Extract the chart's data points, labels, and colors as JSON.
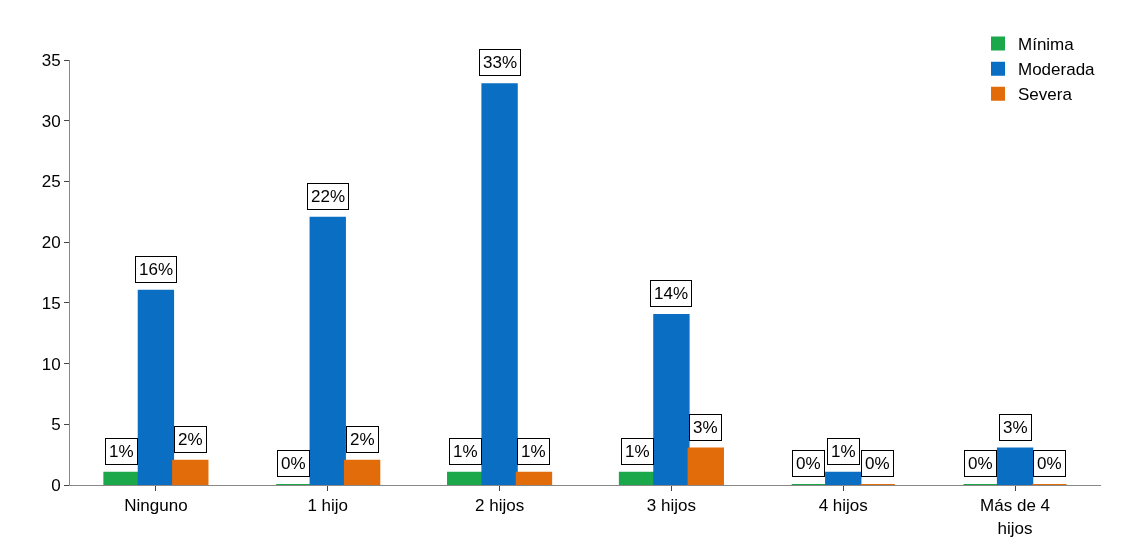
{
  "chart_data": {
    "type": "bar",
    "categories": [
      "Ninguno",
      "1 hijo",
      "2 hijos",
      "3 hijos",
      "4 hijos",
      "Más de 4 hijos"
    ],
    "series": [
      {
        "name": "Mínima",
        "color": "#1aa84a",
        "values": [
          1,
          0,
          1,
          1,
          0,
          0
        ],
        "value_labels": [
          "1%",
          "0%",
          "1%",
          "1%",
          "0%",
          "0%"
        ]
      },
      {
        "name": "Moderada",
        "color": "#0a6fc2",
        "values": [
          16,
          22,
          33,
          14,
          1,
          3
        ],
        "value_labels": [
          "16%",
          "22%",
          "33%",
          "14%",
          "1%",
          "3%"
        ]
      },
      {
        "name": "Severa",
        "color": "#e36c0a",
        "values": [
          2,
          2,
          1,
          3,
          0,
          0
        ],
        "value_labels": [
          "2%",
          "2%",
          "1%",
          "3%",
          "0%",
          "0%"
        ]
      }
    ],
    "ylim": [
      0,
      35
    ],
    "yticks": [
      0,
      5,
      10,
      15,
      20,
      25,
      30,
      35
    ],
    "legend": "top right"
  }
}
